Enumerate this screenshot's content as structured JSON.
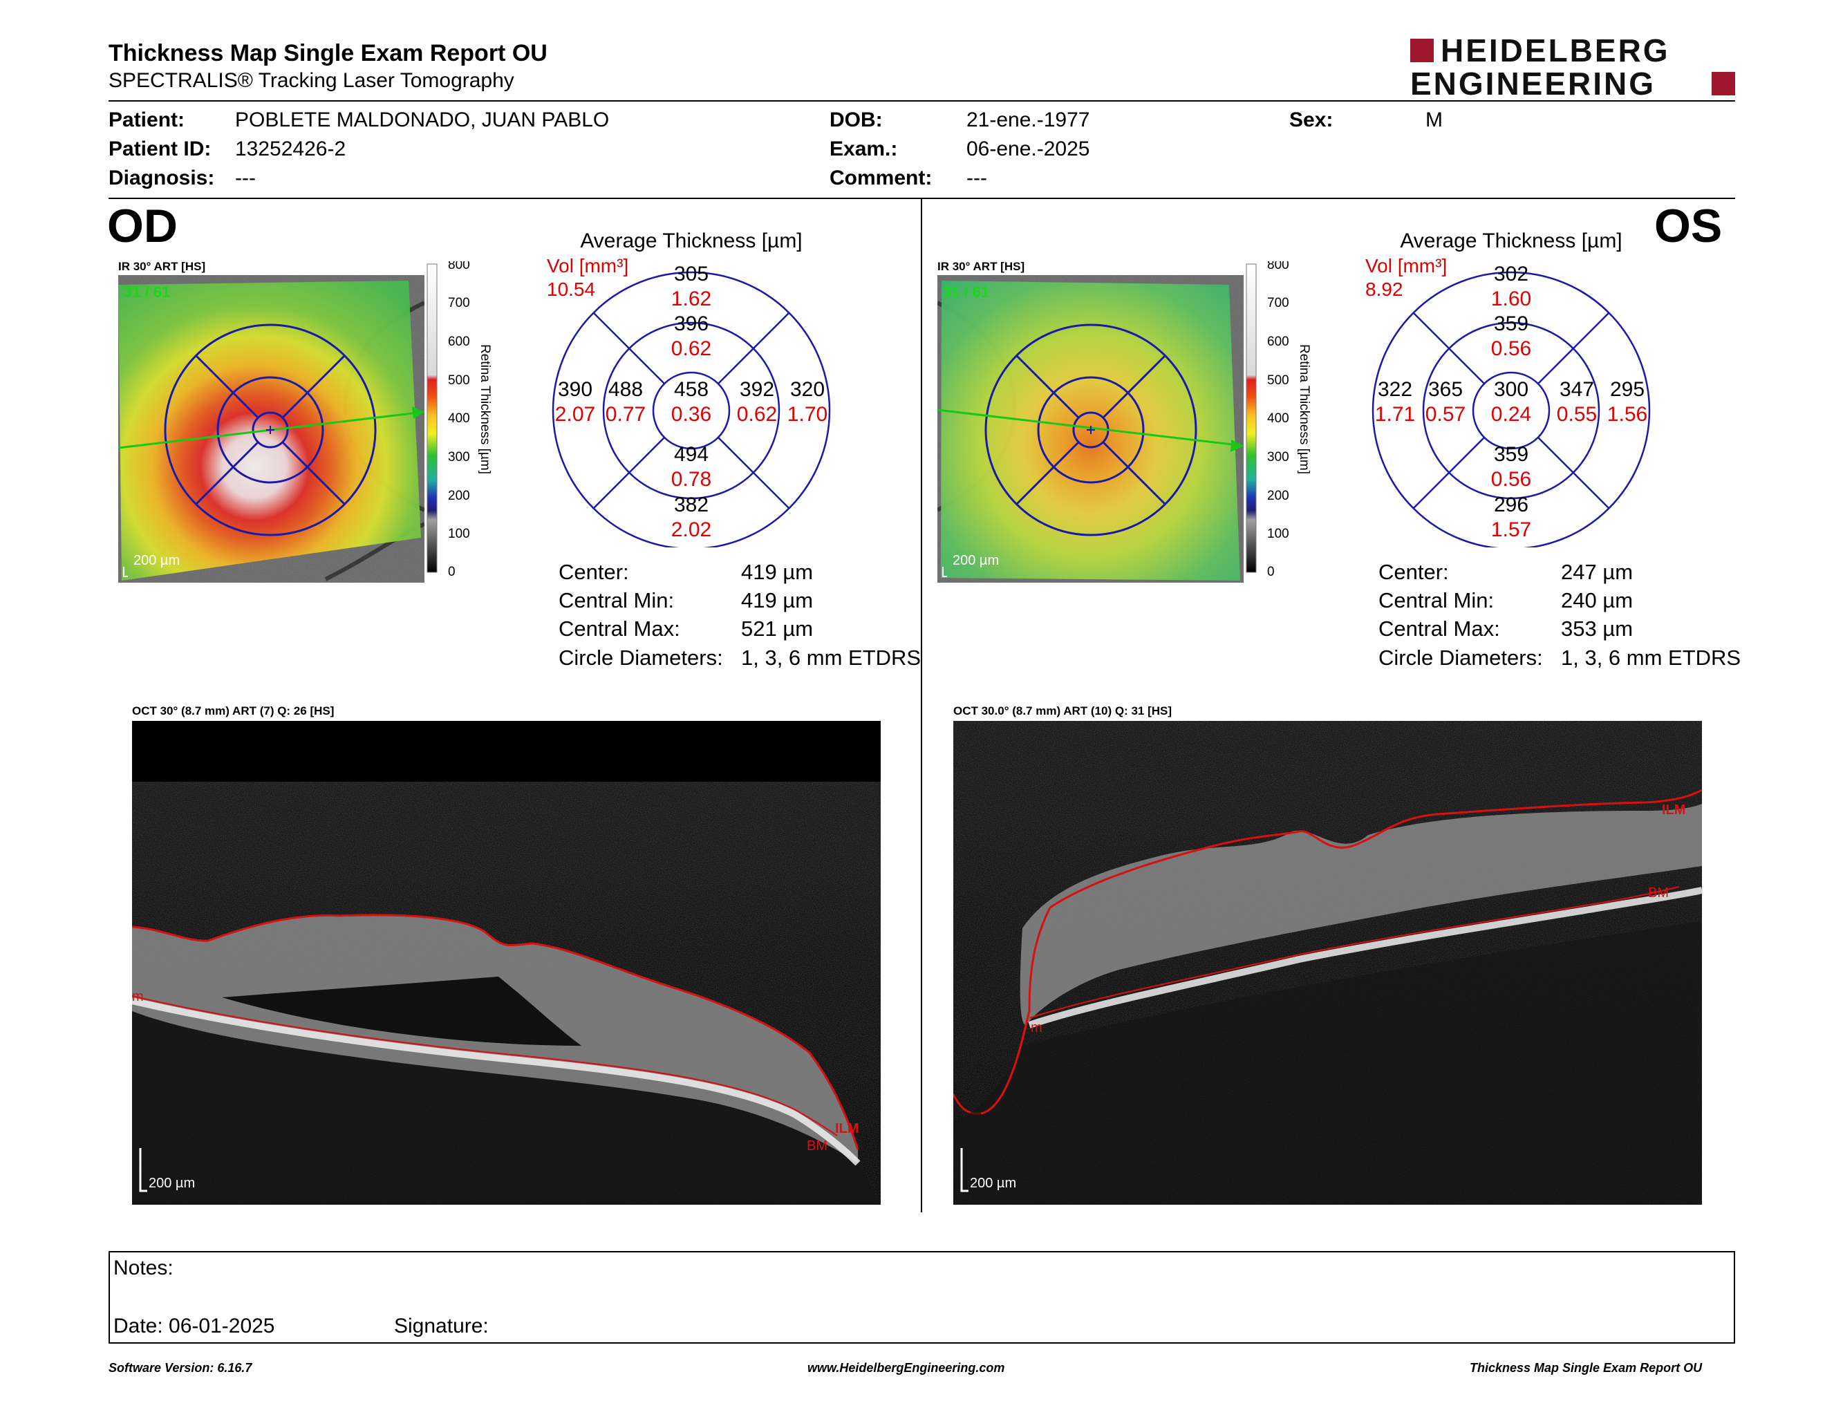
{
  "header": {
    "title": "Thickness Map Single Exam Report OU",
    "subtitle": "SPECTRALIS® Tracking Laser Tomography",
    "logo_line1": "HEIDELBERG",
    "logo_line2": "ENGINEERING"
  },
  "patient": {
    "patient_label": "Patient:",
    "patient_name": "POBLETE MALDONADO, JUAN PABLO",
    "id_label": "Patient ID:",
    "id": "13252426-2",
    "diagnosis_label": "Diagnosis:",
    "diagnosis": "---",
    "dob_label": "DOB:",
    "dob": "21-ene.-1977",
    "exam_label": "Exam.:",
    "exam": "06-ene.-2025",
    "comment_label": "Comment:",
    "comment": "---",
    "sex_label": "Sex:",
    "sex": "M"
  },
  "scale": {
    "ticks": [
      "800",
      "700",
      "600",
      "500",
      "400",
      "300",
      "200",
      "100",
      "0"
    ],
    "label": "Retina Thickness [µm]"
  },
  "od": {
    "eye": "OD",
    "ir_label": "IR 30° ART [HS]",
    "ir_counter": "31 / 61",
    "scale_bar": "200 µm",
    "avg_title": "Average Thickness [µm]",
    "vol_label": "Vol [mm³]",
    "vol_total": "10.54",
    "sectors": {
      "outer_sup": {
        "t": "305",
        "v": "1.62"
      },
      "inner_sup": {
        "t": "396",
        "v": "0.62"
      },
      "outer_nas": {
        "t": "390",
        "v": "2.07"
      },
      "inner_nas": {
        "t": "488",
        "v": "0.77"
      },
      "center": {
        "t": "458",
        "v": "0.36"
      },
      "inner_tmp": {
        "t": "392",
        "v": "0.62"
      },
      "outer_tmp": {
        "t": "320",
        "v": "1.70"
      },
      "inner_inf": {
        "t": "494",
        "v": "0.78"
      },
      "outer_inf": {
        "t": "382",
        "v": "2.02"
      }
    },
    "stats": {
      "center_label": "Center:",
      "center": "419 µm",
      "cmin_label": "Central Min:",
      "cmin": "419 µm",
      "cmax_label": "Central Max:",
      "cmax": "521 µm",
      "circ_label": "Circle Diameters:",
      "circ": "1, 3, 6 mm ETDRS"
    },
    "oct_label": "OCT 30° (8.7 mm) ART (7) Q: 26 [HS]",
    "oct_scale": "200 µm",
    "layer_ilm": "ILM",
    "layer_bm": "BM",
    "layer_bm_left": "m"
  },
  "os": {
    "eye": "OS",
    "ir_label": "IR 30° ART [HS]",
    "ir_counter": "31 / 61",
    "scale_bar": "200 µm",
    "avg_title": "Average Thickness [µm]",
    "vol_label": "Vol [mm³]",
    "vol_total": "8.92",
    "sectors": {
      "outer_sup": {
        "t": "302",
        "v": "1.60"
      },
      "inner_sup": {
        "t": "359",
        "v": "0.56"
      },
      "outer_nas": {
        "t": "322",
        "v": "1.71"
      },
      "inner_nas": {
        "t": "365",
        "v": "0.57"
      },
      "center": {
        "t": "300",
        "v": "0.24"
      },
      "inner_tmp": {
        "t": "347",
        "v": "0.55"
      },
      "outer_tmp": {
        "t": "295",
        "v": "1.56"
      },
      "inner_inf": {
        "t": "359",
        "v": "0.56"
      },
      "outer_inf": {
        "t": "296",
        "v": "1.57"
      }
    },
    "stats": {
      "center_label": "Center:",
      "center": "247 µm",
      "cmin_label": "Central Min:",
      "cmin": "240 µm",
      "cmax_label": "Central Max:",
      "cmax": "353 µm",
      "circ_label": "Circle Diameters:",
      "circ": "1, 3, 6 mm ETDRS"
    },
    "oct_label": "OCT 30.0° (8.7 mm) ART (10) Q: 31 [HS]",
    "oct_scale": "200 µm",
    "layer_ilm": "ILM",
    "layer_bm": "BM",
    "layer_bm_left": "m"
  },
  "notes": {
    "notes_label": "Notes:",
    "date_label": "Date: 06-01-2025",
    "signature_label": "Signature:"
  },
  "footer": {
    "version": "Software Version: 6.16.7",
    "website": "www.HeidelbergEngineering.com",
    "report": "Thickness Map Single Exam Report OU"
  },
  "colors": {
    "accent_red": "#a0182e",
    "value_red": "#e00000",
    "grid_blue": "#1a1aa8",
    "scan_green": "#18c818",
    "seg_red": "#d81010"
  }
}
